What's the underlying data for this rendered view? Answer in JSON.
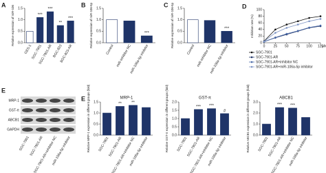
{
  "chart_data": [
    {
      "panel": "A",
      "type": "bar",
      "ylabel": "Relative expression of miR-106",
      "categories": [
        "GES-1",
        "SGC-7901",
        "SGC-7901-AR",
        "BGC-823",
        "BGC-823-AR"
      ],
      "values": [
        0.5,
        1.1,
        1.35,
        0.75,
        0.95
      ],
      "colors": [
        "#ffffff",
        "#1f3468",
        "#1f3468",
        "#1f3468",
        "#1f3468"
      ],
      "significance": [
        null,
        "***",
        "***",
        "**",
        "***"
      ],
      "ylim": [
        0,
        1.5
      ],
      "yticks": [
        {
          "value": 0,
          "label": "0.0"
        },
        {
          "value": 0.5,
          "label": "0.5"
        },
        {
          "value": 1,
          "label": "1.0"
        },
        {
          "value": 1.5,
          "label": "1.5"
        }
      ]
    },
    {
      "panel": "B",
      "type": "bar",
      "ylabel": "Relative expression of miR-106-5p",
      "categories": [
        "Control",
        "miR-inhibitor NC",
        "miR-106a-5p inhibitor"
      ],
      "values": [
        1.0,
        0.95,
        0.3
      ],
      "colors": [
        "#ffffff",
        "#1f3468",
        "#1f3468"
      ],
      "significance": [
        null,
        null,
        "***"
      ],
      "ylim": [
        0,
        1.5
      ],
      "yticks": [
        {
          "value": 0,
          "label": "0.0"
        },
        {
          "value": 0.5,
          "label": "0.5"
        },
        {
          "value": 1,
          "label": "1.0"
        },
        {
          "value": 1.5,
          "label": "1.5"
        }
      ]
    },
    {
      "panel": "C",
      "type": "bar",
      "ylabel": "Relative expression of miR-106-5p",
      "categories": [
        "Control",
        "miR-inhibitor NC",
        "miR-106a-5p inhibitor"
      ],
      "values": [
        1.0,
        0.97,
        0.5
      ],
      "colors": [
        "#ffffff",
        "#1f3468",
        "#1f3468"
      ],
      "significance": [
        null,
        null,
        "***"
      ],
      "ylim": [
        0,
        1.5
      ],
      "yticks": [
        {
          "value": 0,
          "label": "0.0"
        },
        {
          "value": 0.5,
          "label": "0.5"
        },
        {
          "value": 1,
          "label": "1.0"
        },
        {
          "value": 1.5,
          "label": "1.5"
        }
      ]
    },
    {
      "panel": "D",
      "type": "line",
      "ylabel": "Inhibition rate (%)",
      "xunit": "μM",
      "x": [
        0,
        25,
        50,
        75,
        100,
        125
      ],
      "series": [
        {
          "name": "SGC-7901",
          "color": "#111111",
          "values": [
            5,
            40,
            55,
            65,
            75,
            80
          ]
        },
        {
          "name": "SGC-7901-AR",
          "color": "#1f3468",
          "values": [
            3,
            15,
            25,
            35,
            45,
            50
          ]
        },
        {
          "name": "SGC-7901-AR+inhibitor NC",
          "color": "#4a6aa8",
          "values": [
            3,
            16,
            27,
            36,
            46,
            52
          ]
        },
        {
          "name": "SGC-7901-AR+miR-106a-5p inhibitor",
          "color": "#7f95c4",
          "values": [
            4,
            30,
            45,
            55,
            65,
            72
          ]
        }
      ],
      "xlim": [
        0,
        125
      ],
      "xticks": [
        0,
        25,
        50,
        75,
        100,
        125
      ],
      "ylim": [
        0,
        100
      ],
      "yticks": [
        0,
        20,
        40,
        60,
        80,
        100
      ]
    },
    {
      "panel": "E",
      "type": "bar",
      "title": "MRP-1",
      "ylabel": "Relative MRP-1 expression in different groups (fold)",
      "categories": [
        "SGC-7901",
        "SGC-7901-AR",
        "SGC-7901-AR+inhibitor NC",
        "miR-106a-5p inhibitor"
      ],
      "values": [
        1.0,
        1.3,
        1.35,
        1.25
      ],
      "colors": [
        "#1f3468",
        "#1f3468",
        "#1f3468",
        "#1f3468"
      ],
      "significance": [
        null,
        "**",
        "**",
        null
      ],
      "ylim": [
        0,
        1.5
      ],
      "yticks": [
        {
          "value": 0,
          "label": "0.0"
        },
        {
          "value": 0.5,
          "label": "0.5"
        },
        {
          "value": 1,
          "label": "1.0"
        },
        {
          "value": 1.5,
          "label": "1.5"
        }
      ]
    },
    {
      "type": "bar",
      "title": "GST-π",
      "ylabel": "Relative GST-π expression in different groups (fold)",
      "categories": [
        "SGC-7901",
        "SGC-7901-AR",
        "SGC-7901-AR+inhibitor NC",
        "miR-106a-5p inhibitor"
      ],
      "values": [
        1.0,
        1.55,
        1.6,
        1.3
      ],
      "colors": [
        "#1f3468",
        "#1f3468",
        "#1f3468",
        "#1f3468"
      ],
      "significance": [
        null,
        "***",
        "***",
        "#"
      ],
      "ylim": [
        0,
        2
      ],
      "yticks": [
        {
          "value": 0,
          "label": "0.0"
        },
        {
          "value": 0.5,
          "label": "0.5"
        },
        {
          "value": 1,
          "label": "1.0"
        },
        {
          "value": 1.5,
          "label": "1.5"
        },
        {
          "value": 2,
          "label": "2.0"
        }
      ]
    },
    {
      "type": "bar",
      "title": "ABCB1",
      "ylabel": "Relative ABCB1 expression in different groups (fold)",
      "categories": [
        "SGC-7901",
        "SGC-7901-AR",
        "SGC-7901-AR+inhibitor NC",
        "miR-106a-5p inhibitor"
      ],
      "values": [
        1.0,
        2.5,
        2.45,
        1.6
      ],
      "colors": [
        "#1f3468",
        "#1f3468",
        "#1f3468",
        "#1f3468"
      ],
      "significance": [
        null,
        "***",
        "***",
        null
      ],
      "ylim": [
        0,
        3
      ],
      "yticks": [
        {
          "value": 0,
          "label": "0.0"
        },
        {
          "value": 1,
          "label": "1.0"
        },
        {
          "value": 2,
          "label": "2.0"
        },
        {
          "value": 3,
          "label": "3.0"
        }
      ]
    }
  ],
  "blot": {
    "rows": [
      "MRP-1",
      "GST-π",
      "ABCB1",
      "GAPDH"
    ],
    "columns": [
      "SGC-7901",
      "SGC-7901-AR",
      "SGC-7901-AR+inhibitor NC",
      "miR-106a-5p inhibitor"
    ]
  }
}
